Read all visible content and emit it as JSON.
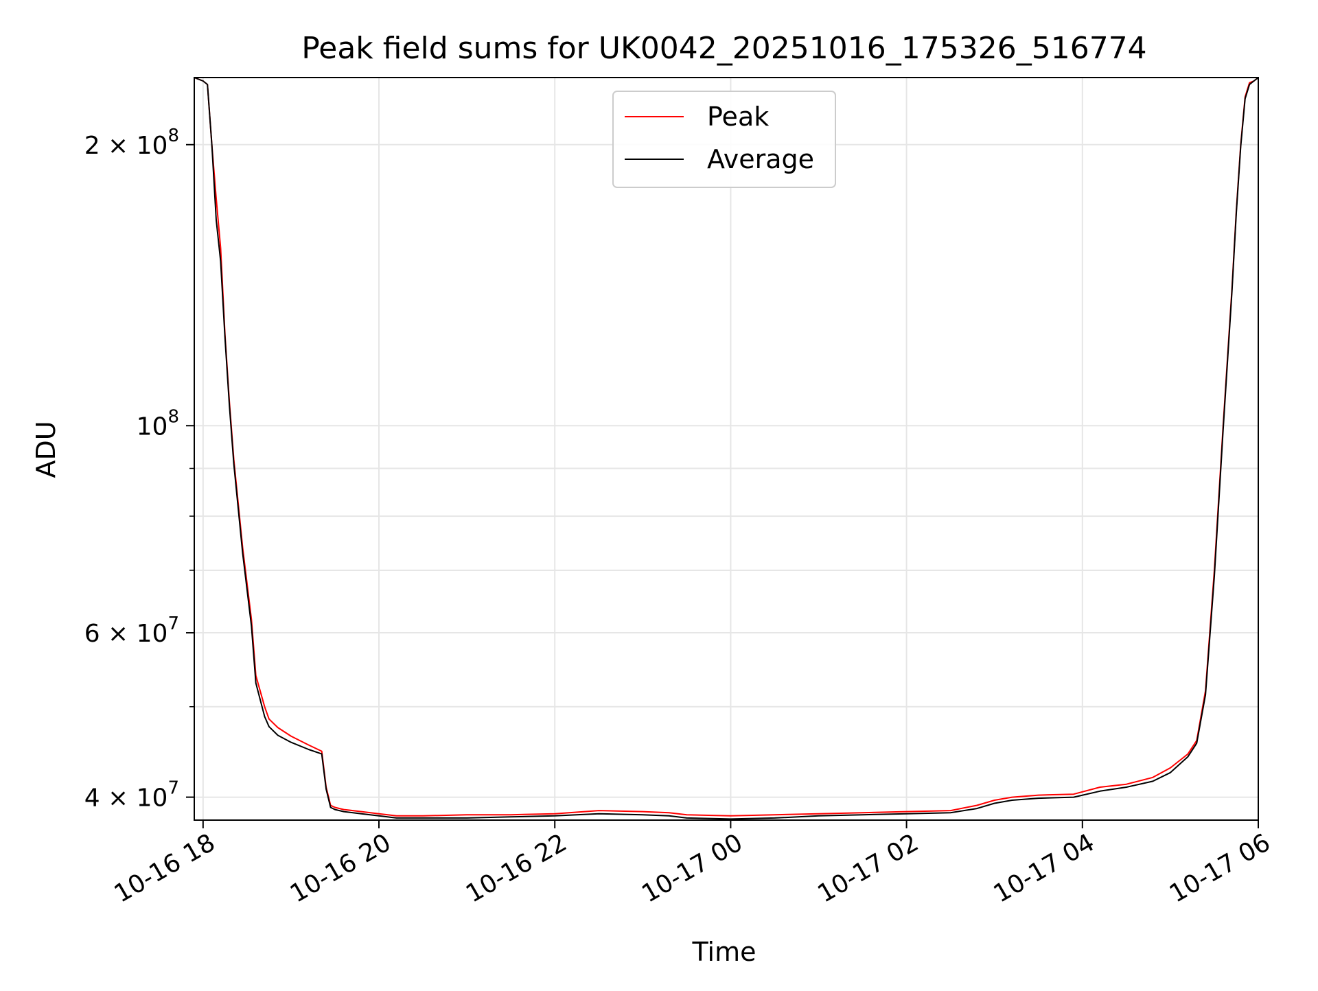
{
  "chart_data": {
    "type": "line",
    "title": "Peak field sums for UK0042_20251016_175326_516774",
    "xlabel": "Time",
    "ylabel": "ADU",
    "yscale": "log",
    "grid": true,
    "legend_position": "upper-center",
    "x_unit": "hours since 2025-10-16 18:00",
    "xlim": [
      -0.1,
      12.0
    ],
    "ylim": [
      37800000,
      236000000
    ],
    "x_ticks": [
      {
        "value": 0,
        "label": "10-16 18"
      },
      {
        "value": 2,
        "label": "10-16 20"
      },
      {
        "value": 4,
        "label": "10-16 22"
      },
      {
        "value": 6,
        "label": "10-17 00"
      },
      {
        "value": 8,
        "label": "10-17 02"
      },
      {
        "value": 10,
        "label": "10-17 04"
      },
      {
        "value": 12,
        "label": "10-17 06"
      }
    ],
    "y_ticks": [
      {
        "value": 40000000,
        "mantissa": "4",
        "exponent": "7"
      },
      {
        "value": 60000000,
        "mantissa": "6",
        "exponent": "7"
      },
      {
        "value": 100000000,
        "mantissa": "",
        "exponent": "8"
      },
      {
        "value": 200000000,
        "mantissa": "2",
        "exponent": "8"
      }
    ],
    "y_minor_ticks": [
      50000000,
      70000000,
      80000000,
      90000000
    ],
    "series": [
      {
        "name": "Peak",
        "color": "#ff0000",
        "x": [
          -0.1,
          0.0,
          0.05,
          0.1,
          0.15,
          0.2,
          0.25,
          0.3,
          0.35,
          0.45,
          0.55,
          0.6,
          0.7,
          0.75,
          0.85,
          1.0,
          1.2,
          1.35,
          1.4,
          1.45,
          1.5,
          1.6,
          1.8,
          2.0,
          2.2,
          2.5,
          3.0,
          3.5,
          4.0,
          4.5,
          5.0,
          5.3,
          5.5,
          6.0,
          6.5,
          7.0,
          7.5,
          8.0,
          8.5,
          8.8,
          9.0,
          9.2,
          9.5,
          9.9,
          10.2,
          10.5,
          10.8,
          11.0,
          11.2,
          11.3,
          11.4,
          11.5,
          11.6,
          11.7,
          11.75,
          11.8,
          11.85,
          11.9,
          11.95,
          12.0
        ],
        "y": [
          236000000,
          234000000,
          232000000,
          200000000,
          175000000,
          155000000,
          125000000,
          106000000,
          92000000,
          74000000,
          62000000,
          54000000,
          50000000,
          48500000,
          47500000,
          46500000,
          45500000,
          44800000,
          41000000,
          39200000,
          39000000,
          38800000,
          38600000,
          38400000,
          38200000,
          38200000,
          38300000,
          38300000,
          38400000,
          38700000,
          38600000,
          38500000,
          38300000,
          38200000,
          38300000,
          38400000,
          38500000,
          38600000,
          38700000,
          39200000,
          39700000,
          40000000,
          40200000,
          40300000,
          41000000,
          41300000,
          42000000,
          43000000,
          44500000,
          46000000,
          52000000,
          70000000,
          100000000,
          140000000,
          170000000,
          200000000,
          225000000,
          233000000,
          234000000,
          236000000
        ]
      },
      {
        "name": "Average",
        "color": "#000000",
        "x": [
          -0.1,
          0.0,
          0.05,
          0.1,
          0.15,
          0.2,
          0.25,
          0.3,
          0.35,
          0.45,
          0.55,
          0.6,
          0.7,
          0.75,
          0.85,
          1.0,
          1.2,
          1.35,
          1.4,
          1.45,
          1.5,
          1.6,
          1.8,
          2.0,
          2.2,
          2.5,
          3.0,
          3.5,
          4.0,
          4.5,
          5.0,
          5.3,
          5.5,
          6.0,
          6.5,
          7.0,
          7.5,
          8.0,
          8.5,
          8.8,
          9.0,
          9.2,
          9.5,
          9.9,
          10.2,
          10.5,
          10.8,
          11.0,
          11.2,
          11.3,
          11.4,
          11.5,
          11.6,
          11.7,
          11.75,
          11.8,
          11.85,
          11.9,
          11.95,
          12.0
        ],
        "y": [
          236000000,
          234000000,
          232000000,
          200000000,
          166000000,
          150000000,
          124000000,
          105000000,
          91000000,
          73000000,
          61000000,
          53000000,
          48800000,
          47600000,
          46600000,
          45800000,
          45000000,
          44500000,
          40800000,
          39000000,
          38800000,
          38600000,
          38400000,
          38200000,
          38000000,
          38000000,
          38000000,
          38100000,
          38200000,
          38400000,
          38300000,
          38200000,
          38000000,
          37900000,
          38000000,
          38200000,
          38300000,
          38400000,
          38500000,
          38900000,
          39400000,
          39700000,
          39900000,
          40000000,
          40600000,
          41000000,
          41600000,
          42500000,
          44200000,
          45700000,
          51500000,
          69000000,
          99000000,
          139000000,
          169000000,
          199000000,
          224000000,
          232000000,
          234000000,
          236000000
        ]
      }
    ]
  }
}
